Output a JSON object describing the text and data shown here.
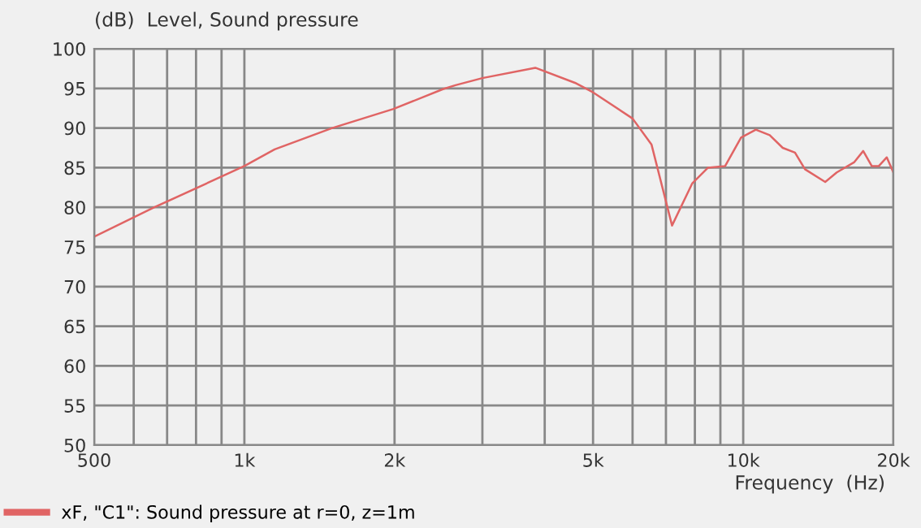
{
  "chart_data": {
    "type": "line",
    "ylabel": "(dB)  Level, Sound pressure",
    "xlabel": "Frequency  (Hz)",
    "log": "x",
    "xlim": [
      500,
      20000
    ],
    "ylim": [
      50,
      100
    ],
    "xticks": [
      500,
      {
        "value": 600,
        "label": null
      },
      {
        "value": 700,
        "label": null
      },
      {
        "value": 800,
        "label": null
      },
      {
        "value": 900,
        "label": null
      },
      {
        "value": 1000,
        "label": "1k"
      },
      {
        "value": 2000,
        "label": "2k"
      },
      {
        "value": 3000,
        "label": null
      },
      {
        "value": 4000,
        "label": null
      },
      {
        "value": 5000,
        "label": "5k"
      },
      {
        "value": 6000,
        "label": null
      },
      {
        "value": 7000,
        "label": null
      },
      {
        "value": 8000,
        "label": null
      },
      {
        "value": 9000,
        "label": null
      },
      {
        "value": 10000,
        "label": "10k"
      },
      {
        "value": 20000,
        "label": "20k"
      }
    ],
    "yticks": [
      50,
      55,
      60,
      65,
      70,
      75,
      80,
      85,
      90,
      95,
      100
    ],
    "grid": true,
    "legend": "bottom",
    "marker": "none",
    "line_style": "solid",
    "x": [
      500,
      660,
      1000,
      1150,
      1500,
      1990,
      2500,
      2650,
      3000,
      3830,
      4600,
      5000,
      6000,
      6550,
      7200,
      7900,
      8500,
      9200,
      9900,
      10600,
      11300,
      12000,
      12700,
      13300,
      14600,
      15400,
      16700,
      17400,
      18100,
      18700,
      19400,
      20000
    ],
    "series": [
      {
        "name": "xF, \"C1\": Sound pressure at r=0, z=1m",
        "color": "#e06464",
        "values": [
          76.3,
          80,
          85.2,
          87.3,
          90,
          92.4,
          94.9,
          95.4,
          96.3,
          97.6,
          95.7,
          94.5,
          91.2,
          87.9,
          77.7,
          83,
          85,
          85.2,
          88.8,
          89.8,
          89.1,
          87.5,
          86.9,
          84.8,
          83.2,
          84.4,
          85.7,
          87.1,
          85.2,
          85.2,
          86.3,
          84.4
        ]
      }
    ]
  }
}
